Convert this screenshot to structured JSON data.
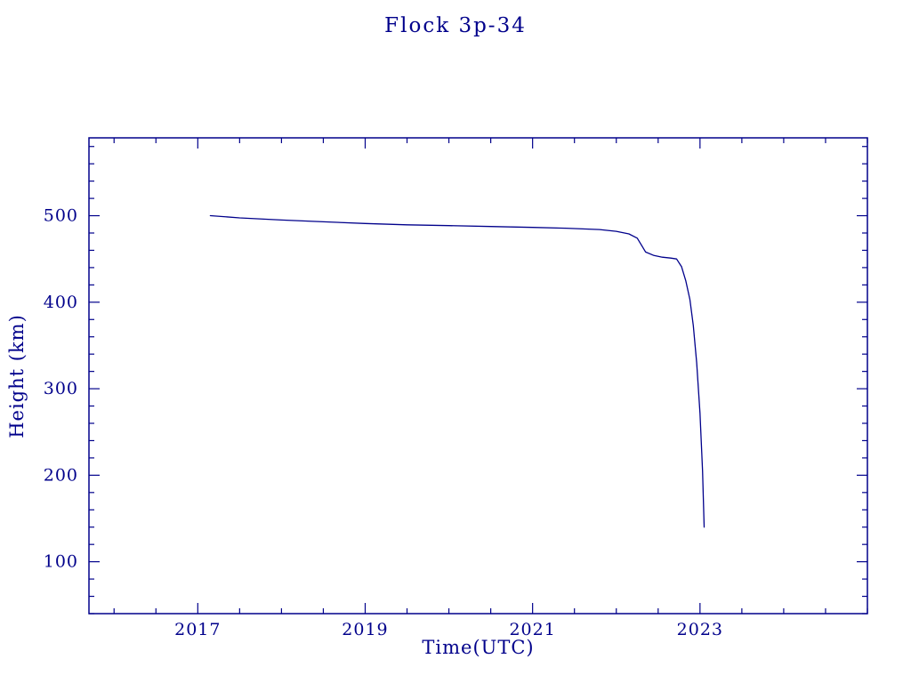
{
  "chart_data": {
    "type": "line",
    "title": "Flock 3p-34",
    "xlabel": "Time(UTC)",
    "ylabel": "Height (km)",
    "xlim": [
      2015.7,
      2025.0
    ],
    "ylim": [
      40,
      590
    ],
    "x_major_ticks": [
      2017,
      2019,
      2021,
      2023
    ],
    "x_minor_step": 0.5,
    "y_major_ticks": [
      100,
      200,
      300,
      400,
      500
    ],
    "y_minor_step": 20,
    "grid": false,
    "legend_position": "none",
    "series": [
      {
        "name": "Flock 3p-34 height",
        "points": [
          [
            2017.15,
            500
          ],
          [
            2017.5,
            497.5
          ],
          [
            2018.0,
            495
          ],
          [
            2018.5,
            493
          ],
          [
            2019.0,
            491
          ],
          [
            2019.5,
            489.5
          ],
          [
            2020.0,
            488.5
          ],
          [
            2020.5,
            487.5
          ],
          [
            2021.0,
            486.5
          ],
          [
            2021.4,
            485.5
          ],
          [
            2021.8,
            484
          ],
          [
            2022.0,
            482
          ],
          [
            2022.15,
            479
          ],
          [
            2022.25,
            474
          ],
          [
            2022.3,
            466
          ],
          [
            2022.35,
            458
          ],
          [
            2022.45,
            454
          ],
          [
            2022.55,
            452
          ],
          [
            2022.65,
            451
          ],
          [
            2022.72,
            450
          ],
          [
            2022.78,
            441
          ],
          [
            2022.83,
            425
          ],
          [
            2022.88,
            403
          ],
          [
            2022.92,
            373
          ],
          [
            2022.96,
            330
          ],
          [
            2023.0,
            272
          ],
          [
            2023.03,
            205
          ],
          [
            2023.05,
            140
          ]
        ]
      }
    ],
    "colors": {
      "line": "#00008b",
      "axis": "#00008b",
      "text": "#00008b",
      "background": "#ffffff"
    }
  }
}
